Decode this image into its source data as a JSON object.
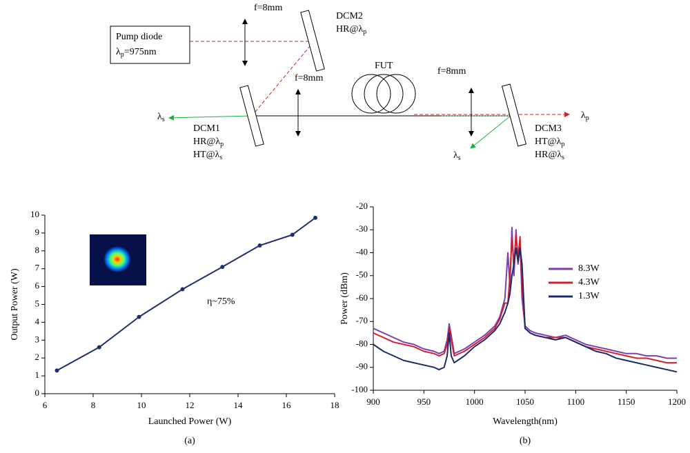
{
  "diagram": {
    "pump": {
      "name": "Pump diode",
      "line": {
        "text": "λ",
        "sub": "p",
        "rest": "=975nm"
      }
    },
    "lens_labels": [
      "f=8mm",
      "f=8mm",
      "f=8mm"
    ],
    "fiber": "FUT",
    "mirrors": [
      {
        "name": "DCM1",
        "lines": [
          {
            "text": "HR@λ",
            "sub": "p"
          },
          {
            "text": "HT@λ",
            "sub": "s"
          }
        ]
      },
      {
        "name": "DCM2",
        "lines": [
          {
            "text": "HR@λ",
            "sub": "p"
          }
        ]
      },
      {
        "name": "DCM3",
        "lines": [
          {
            "text": "HT@λ",
            "sub": "p"
          },
          {
            "text": "HR@λ",
            "sub": "s"
          }
        ]
      }
    ],
    "outputs": [
      {
        "text": "λ",
        "sub": "s"
      },
      {
        "text": "λ",
        "sub": "s"
      },
      {
        "text": "λ",
        "sub": "p"
      }
    ]
  },
  "chart_data": [
    {
      "type": "line",
      "caption": "(a)",
      "x_label": "Launched Power (W)",
      "y_label": "Output Power (W)",
      "annotation": "η~75%",
      "x": [
        6.5,
        8.25,
        9.9,
        11.7,
        13.35,
        14.9,
        16.25,
        17.2
      ],
      "values": [
        1.3,
        2.6,
        4.3,
        5.85,
        7.1,
        8.3,
        8.9,
        9.85
      ],
      "color": "#1f2f6e",
      "markers": true,
      "xlim": [
        6,
        18
      ],
      "xticks": [
        6,
        8,
        10,
        12,
        14,
        16,
        18
      ],
      "ylim": [
        0,
        10
      ],
      "yticks": [
        0,
        1,
        2,
        3,
        4,
        5,
        6,
        7,
        8,
        9,
        10
      ],
      "grid": false
    },
    {
      "type": "line",
      "caption": "(b)",
      "x_label": "Wavelength(nm)",
      "y_label": "Power (dBm)",
      "x": [
        900,
        910,
        920,
        930,
        940,
        950,
        960,
        965,
        970,
        973,
        975,
        977,
        980,
        990,
        1000,
        1010,
        1020,
        1025,
        1030,
        1033,
        1035,
        1037,
        1039,
        1041,
        1043,
        1045,
        1047,
        1050,
        1055,
        1060,
        1070,
        1080,
        1090,
        1100,
        1110,
        1120,
        1130,
        1140,
        1150,
        1160,
        1170,
        1180,
        1190,
        1200
      ],
      "series": [
        {
          "name": "8.3W",
          "color": "#7b3fb0",
          "values": [
            -73,
            -75,
            -77,
            -79,
            -80,
            -82,
            -83,
            -84,
            -83,
            -78,
            -71,
            -76,
            -84,
            -82,
            -79,
            -76,
            -72,
            -68,
            -60,
            -40,
            -55,
            -29,
            -50,
            -30,
            -45,
            -36,
            -60,
            -72,
            -74,
            -75,
            -76,
            -77,
            -76,
            -78,
            -80,
            -81,
            -82,
            -83,
            -84,
            -84,
            -85,
            -85,
            -86,
            -86
          ]
        },
        {
          "name": "4.3W",
          "color": "#d02030",
          "values": [
            -75,
            -77,
            -79,
            -80,
            -81,
            -83,
            -84,
            -85,
            -84,
            -80,
            -73,
            -78,
            -85,
            -83,
            -80,
            -77,
            -73,
            -69,
            -62,
            -62,
            -50,
            -34,
            -45,
            -32,
            -42,
            -33,
            -55,
            -73,
            -75,
            -76,
            -77,
            -77,
            -77,
            -79,
            -81,
            -82,
            -83,
            -84,
            -85,
            -86,
            -86,
            -87,
            -88,
            -88
          ]
        },
        {
          "name": "1.3W",
          "color": "#1a2a6c",
          "values": [
            -80,
            -83,
            -85,
            -87,
            -88,
            -89,
            -90,
            -91,
            -90,
            -85,
            -75,
            -85,
            -88,
            -85,
            -81,
            -78,
            -74,
            -71,
            -66,
            -62,
            -58,
            -50,
            -45,
            -38,
            -44,
            -38,
            -45,
            -73,
            -75,
            -76,
            -77,
            -78,
            -77,
            -79,
            -81,
            -83,
            -84,
            -86,
            -87,
            -88,
            -89,
            -90,
            -91,
            -92
          ]
        }
      ],
      "legend": "right",
      "xlim": [
        900,
        1200
      ],
      "xticks": [
        900,
        950,
        1000,
        1050,
        1100,
        1150,
        1200
      ],
      "ylim": [
        -100,
        -20
      ],
      "yticks": [
        -100,
        -90,
        -80,
        -70,
        -60,
        -50,
        -40,
        -30,
        -20
      ],
      "grid": false
    }
  ]
}
